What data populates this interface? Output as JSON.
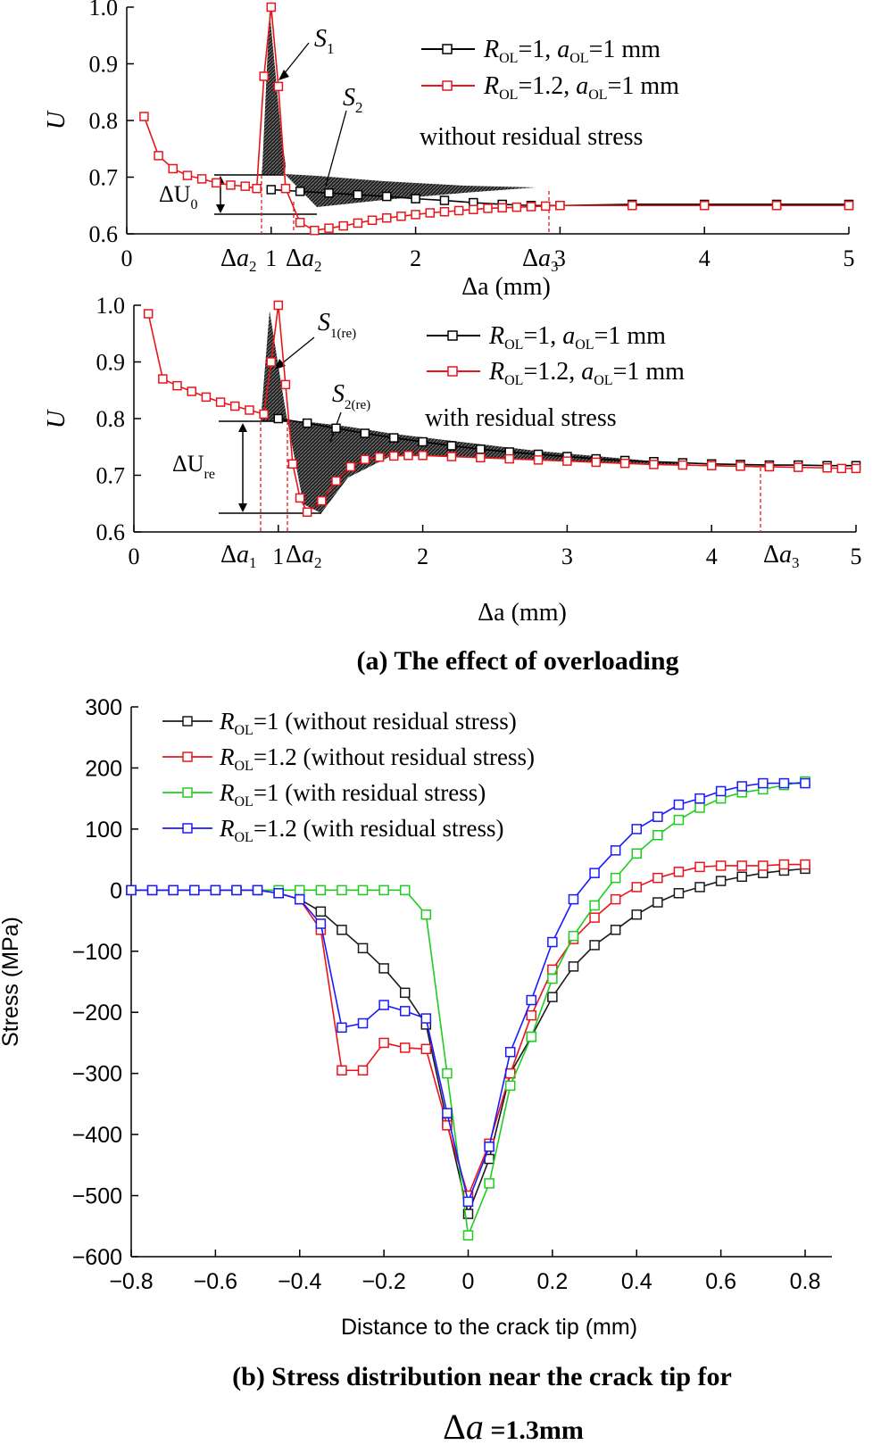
{
  "chart_data": [
    {
      "id": "a1",
      "type": "line",
      "panel_note": "without residual stress",
      "xlabel": "Δa (mm)",
      "ylabel": "U",
      "xlim": [
        0,
        5
      ],
      "ylim": [
        0.6,
        1.0
      ],
      "y_ticks": [
        "0.6",
        "0.7",
        "0.8",
        "0.9",
        "1.0"
      ],
      "x_ticks": [
        "0",
        "1",
        "2",
        "3",
        "4",
        "5"
      ],
      "x_marker_labels": [
        "Δa2",
        "Δa2",
        "Δa3"
      ],
      "legend": {
        "series1": {
          "R": "R",
          "sub1": "OL",
          "mid": "=1, ",
          "a": "a",
          "sub2": "OL",
          "tail": "=1 mm"
        },
        "series2": {
          "R": "R",
          "sub1": "OL",
          "mid": "=1.2, ",
          "a": "a",
          "sub2": "OL",
          "tail": "=1 mm"
        }
      },
      "area_labels": {
        "S1": "S",
        "S1_sub": "1",
        "S2": "S",
        "S2_sub": "2"
      },
      "delta_label": {
        "main": "ΔU",
        "sub": "0"
      },
      "series": [
        {
          "name": "R_OL=1, a_OL=1 mm",
          "color": "#000000",
          "x": [
            1.0,
            1.2,
            1.4,
            1.6,
            1.8,
            2.0,
            2.2,
            2.4,
            2.6,
            2.8,
            3.0,
            3.5,
            4.0,
            4.5,
            5.0
          ],
          "y": [
            0.678,
            0.675,
            0.672,
            0.669,
            0.666,
            0.662,
            0.659,
            0.655,
            0.652,
            0.65,
            0.65,
            0.652,
            0.652,
            0.652,
            0.652
          ]
        },
        {
          "name": "R_OL=1.2, a_OL=1 mm",
          "color": "#e8161b",
          "x": [
            0.12,
            0.22,
            0.32,
            0.42,
            0.52,
            0.62,
            0.72,
            0.82,
            0.9,
            0.95,
            1.0,
            1.05,
            1.1,
            1.2,
            1.3,
            1.4,
            1.5,
            1.6,
            1.7,
            1.8,
            1.9,
            2.0,
            2.1,
            2.2,
            2.3,
            2.4,
            2.5,
            2.6,
            2.7,
            2.8,
            2.9,
            3.0,
            3.5,
            4.0,
            4.5,
            5.0
          ],
          "y": [
            0.807,
            0.738,
            0.715,
            0.703,
            0.697,
            0.69,
            0.686,
            0.684,
            0.68,
            0.878,
            1.0,
            0.86,
            0.68,
            0.62,
            0.606,
            0.61,
            0.614,
            0.619,
            0.624,
            0.628,
            0.631,
            0.634,
            0.637,
            0.639,
            0.641,
            0.643,
            0.645,
            0.646,
            0.647,
            0.648,
            0.649,
            0.65,
            0.65,
            0.65,
            0.65,
            0.65
          ]
        }
      ]
    },
    {
      "id": "a2",
      "type": "line",
      "panel_note": "with residual stress",
      "xlabel": "Δa (mm)",
      "ylabel": "U",
      "xlim": [
        0,
        5
      ],
      "ylim": [
        0.6,
        1.0
      ],
      "y_ticks": [
        "0.6",
        "0.7",
        "0.8",
        "0.9",
        "1.0"
      ],
      "x_ticks": [
        "0",
        "1",
        "2",
        "3",
        "4",
        "5"
      ],
      "x_marker_labels": [
        "Δa1",
        "Δa2",
        "Δa3"
      ],
      "legend": {
        "series1": {
          "R": "R",
          "sub1": "OL",
          "mid": "=1, ",
          "a": "a",
          "sub2": "OL",
          "tail": "=1 mm"
        },
        "series2": {
          "R": "R",
          "sub1": "OL",
          "mid": "=1.2, ",
          "a": "a",
          "sub2": "OL",
          "tail": "=1 mm"
        }
      },
      "area_labels": {
        "S1": "S",
        "S1_sub": "1(re)",
        "S2": "S",
        "S2_sub": "2(re)"
      },
      "delta_label": {
        "main": "ΔU",
        "sub": "re"
      },
      "series": [
        {
          "name": "R_OL=1, a_OL=1 mm",
          "color": "#000000",
          "x": [
            1.0,
            1.2,
            1.4,
            1.6,
            1.8,
            2.0,
            2.2,
            2.4,
            2.6,
            2.8,
            3.0,
            3.2,
            3.4,
            3.6,
            3.8,
            4.0,
            4.2,
            4.4,
            4.6,
            4.8,
            5.0
          ],
          "y": [
            0.8,
            0.792,
            0.783,
            0.774,
            0.766,
            0.759,
            0.752,
            0.746,
            0.741,
            0.737,
            0.733,
            0.729,
            0.726,
            0.724,
            0.722,
            0.72,
            0.719,
            0.718,
            0.718,
            0.717,
            0.717
          ]
        },
        {
          "name": "R_OL=1.2, a_OL=1 mm",
          "color": "#e8161b",
          "x": [
            0.1,
            0.2,
            0.3,
            0.4,
            0.5,
            0.6,
            0.7,
            0.8,
            0.9,
            0.95,
            1.0,
            1.05,
            1.1,
            1.15,
            1.2,
            1.3,
            1.4,
            1.5,
            1.6,
            1.7,
            1.8,
            1.9,
            2.0,
            2.2,
            2.4,
            2.6,
            2.8,
            3.0,
            3.2,
            3.4,
            3.6,
            3.8,
            4.0,
            4.2,
            4.4,
            4.6,
            4.8,
            4.9,
            5.0
          ],
          "y": [
            0.985,
            0.87,
            0.858,
            0.848,
            0.838,
            0.829,
            0.822,
            0.815,
            0.808,
            0.9,
            1.0,
            0.86,
            0.72,
            0.66,
            0.635,
            0.655,
            0.69,
            0.715,
            0.728,
            0.732,
            0.734,
            0.735,
            0.735,
            0.733,
            0.731,
            0.729,
            0.727,
            0.725,
            0.723,
            0.721,
            0.719,
            0.718,
            0.717,
            0.716,
            0.715,
            0.714,
            0.713,
            0.712,
            0.712
          ]
        }
      ]
    },
    {
      "id": "b",
      "type": "line",
      "xlabel": "Distance to the crack tip (mm)",
      "ylabel": "Stress (MPa)",
      "xlim": [
        -0.8,
        0.8
      ],
      "ylim": [
        -600,
        300
      ],
      "x_ticks": [
        "−0.8",
        "−0.6",
        "−0.4",
        "−0.2",
        "0",
        "0.2",
        "0.4",
        "0.6",
        "0.8"
      ],
      "y_ticks": [
        "−600",
        "−500",
        "−400",
        "−300",
        "−200",
        "−100",
        "0",
        "100",
        "200",
        "300"
      ],
      "legend": [
        {
          "R": "R",
          "sub": "OL",
          "text": "=1 (without residual stress)"
        },
        {
          "R": "R",
          "sub": "OL",
          "text": "=1.2 (without residual stress)"
        },
        {
          "R": "R",
          "sub": "OL",
          "text": "=1 (with residual stress)"
        },
        {
          "R": "R",
          "sub": "OL",
          "text": "=1.2 (with residual stress)"
        }
      ],
      "series": [
        {
          "name": "R_OL=1 (without residual stress)",
          "color": "#1a1a1a",
          "x": [
            -0.8,
            -0.75,
            -0.7,
            -0.65,
            -0.6,
            -0.55,
            -0.5,
            -0.45,
            -0.4,
            -0.35,
            -0.3,
            -0.25,
            -0.2,
            -0.15,
            -0.1,
            -0.05,
            0,
            0.05,
            0.1,
            0.15,
            0.2,
            0.25,
            0.3,
            0.35,
            0.4,
            0.45,
            0.5,
            0.55,
            0.6,
            0.65,
            0.7,
            0.75,
            0.8
          ],
          "y": [
            0,
            0,
            0,
            0,
            0,
            0,
            0,
            -5,
            -15,
            -35,
            -65,
            -95,
            -128,
            -168,
            -220,
            -380,
            -530,
            -440,
            -300,
            -240,
            -175,
            -125,
            -90,
            -65,
            -40,
            -20,
            -5,
            5,
            15,
            22,
            28,
            32,
            35
          ]
        },
        {
          "name": "R_OL=1.2 (without residual stress)",
          "color": "#e8161b",
          "x": [
            -0.8,
            -0.75,
            -0.7,
            -0.65,
            -0.6,
            -0.55,
            -0.5,
            -0.45,
            -0.4,
            -0.35,
            -0.3,
            -0.25,
            -0.2,
            -0.15,
            -0.1,
            -0.05,
            0,
            0.05,
            0.1,
            0.15,
            0.2,
            0.25,
            0.3,
            0.35,
            0.4,
            0.45,
            0.5,
            0.55,
            0.6,
            0.65,
            0.7,
            0.75,
            0.8
          ],
          "y": [
            0,
            0,
            0,
            0,
            0,
            0,
            0,
            -5,
            -15,
            -65,
            -295,
            -295,
            -250,
            -258,
            -260,
            -385,
            -500,
            -415,
            -300,
            -205,
            -130,
            -80,
            -45,
            -15,
            5,
            20,
            30,
            38,
            40,
            40,
            40,
            42,
            42
          ]
        },
        {
          "name": "R_OL=1 (with residual stress)",
          "color": "#1fcc1f",
          "x": [
            -0.8,
            -0.75,
            -0.7,
            -0.65,
            -0.6,
            -0.55,
            -0.5,
            -0.45,
            -0.4,
            -0.35,
            -0.3,
            -0.25,
            -0.2,
            -0.15,
            -0.1,
            -0.05,
            0,
            0.05,
            0.1,
            0.15,
            0.2,
            0.25,
            0.3,
            0.35,
            0.4,
            0.45,
            0.5,
            0.55,
            0.6,
            0.65,
            0.7,
            0.75,
            0.8
          ],
          "y": [
            0,
            0,
            0,
            0,
            0,
            0,
            0,
            0,
            0,
            0,
            0,
            0,
            0,
            0,
            -40,
            -300,
            -565,
            -480,
            -320,
            -240,
            -145,
            -75,
            -25,
            20,
            60,
            90,
            115,
            135,
            150,
            160,
            165,
            172,
            178
          ]
        },
        {
          "name": "R_OL=1.2 (with residual stress)",
          "color": "#1a1aff",
          "x": [
            -0.8,
            -0.75,
            -0.7,
            -0.65,
            -0.6,
            -0.55,
            -0.5,
            -0.45,
            -0.4,
            -0.35,
            -0.3,
            -0.25,
            -0.2,
            -0.15,
            -0.1,
            -0.05,
            0,
            0.05,
            0.1,
            0.15,
            0.2,
            0.25,
            0.3,
            0.35,
            0.4,
            0.45,
            0.5,
            0.55,
            0.6,
            0.65,
            0.7,
            0.75,
            0.8
          ],
          "y": [
            0,
            0,
            0,
            0,
            0,
            0,
            0,
            -5,
            -15,
            -55,
            -225,
            -218,
            -188,
            -198,
            -210,
            -365,
            -510,
            -420,
            -265,
            -180,
            -85,
            -15,
            28,
            65,
            100,
            120,
            140,
            150,
            162,
            170,
            175,
            175,
            175
          ]
        }
      ]
    }
  ],
  "captions": {
    "a": "(a)   The effect of overloading",
    "b_line1": "(b)   Stress distribution near the crack tip for",
    "b_delta": "Δ",
    "b_a": "a",
    "b_tail": " =1.3mm"
  }
}
